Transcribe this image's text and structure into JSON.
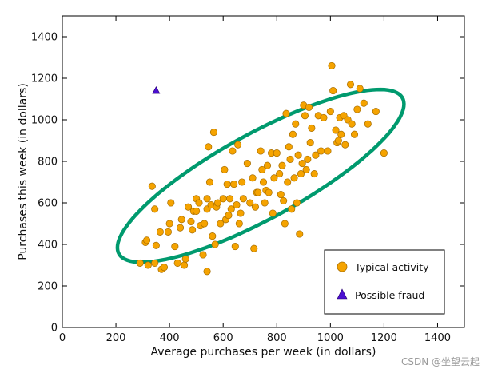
{
  "chart_data": {
    "type": "scatter",
    "xlabel": "Average purchases per week (in dollars)",
    "ylabel": "Purchases this week (in dollars)",
    "xlim": [
      0,
      1500
    ],
    "ylim": [
      0,
      1500
    ],
    "xticks": [
      0,
      200,
      400,
      600,
      800,
      1000,
      1200,
      1400
    ],
    "yticks": [
      0,
      200,
      400,
      600,
      800,
      1000,
      1200,
      1400
    ],
    "grid": false,
    "legend_position": "bottom-right",
    "annotation": {
      "shape": "ellipse",
      "color": "#009a6e",
      "center": [
        740,
        730
      ],
      "semi_axes": [
        650,
        190
      ],
      "angle_deg": 36.5
    },
    "series": [
      {
        "name": "Typical activity",
        "marker": "circle",
        "color": "#f5a300",
        "points": [
          [
            290,
            310
          ],
          [
            310,
            410
          ],
          [
            315,
            420
          ],
          [
            320,
            300
          ],
          [
            335,
            680
          ],
          [
            345,
            310
          ],
          [
            345,
            570
          ],
          [
            350,
            395
          ],
          [
            365,
            460
          ],
          [
            370,
            280
          ],
          [
            380,
            290
          ],
          [
            395,
            460
          ],
          [
            400,
            500
          ],
          [
            405,
            600
          ],
          [
            420,
            390
          ],
          [
            430,
            310
          ],
          [
            440,
            480
          ],
          [
            445,
            520
          ],
          [
            455,
            300
          ],
          [
            460,
            330
          ],
          [
            470,
            580
          ],
          [
            480,
            510
          ],
          [
            485,
            470
          ],
          [
            490,
            560
          ],
          [
            500,
            560
          ],
          [
            500,
            620
          ],
          [
            510,
            600
          ],
          [
            515,
            490
          ],
          [
            525,
            350
          ],
          [
            530,
            500
          ],
          [
            540,
            570
          ],
          [
            540,
            620
          ],
          [
            545,
            870
          ],
          [
            550,
            700
          ],
          [
            555,
            590
          ],
          [
            560,
            440
          ],
          [
            565,
            940
          ],
          [
            570,
            400
          ],
          [
            575,
            580
          ],
          [
            580,
            600
          ],
          [
            590,
            500
          ],
          [
            600,
            620
          ],
          [
            605,
            760
          ],
          [
            610,
            520
          ],
          [
            615,
            690
          ],
          [
            620,
            540
          ],
          [
            625,
            620
          ],
          [
            630,
            570
          ],
          [
            635,
            850
          ],
          [
            640,
            690
          ],
          [
            645,
            390
          ],
          [
            650,
            590
          ],
          [
            655,
            880
          ],
          [
            660,
            500
          ],
          [
            665,
            550
          ],
          [
            670,
            700
          ],
          [
            675,
            620
          ],
          [
            690,
            790
          ],
          [
            700,
            600
          ],
          [
            710,
            720
          ],
          [
            715,
            380
          ],
          [
            720,
            580
          ],
          [
            725,
            650
          ],
          [
            730,
            650
          ],
          [
            740,
            850
          ],
          [
            745,
            760
          ],
          [
            750,
            700
          ],
          [
            755,
            600
          ],
          [
            760,
            660
          ],
          [
            765,
            780
          ],
          [
            770,
            650
          ],
          [
            780,
            840
          ],
          [
            785,
            550
          ],
          [
            790,
            720
          ],
          [
            800,
            840
          ],
          [
            810,
            740
          ],
          [
            815,
            640
          ],
          [
            820,
            780
          ],
          [
            825,
            610
          ],
          [
            830,
            500
          ],
          [
            835,
            1030
          ],
          [
            840,
            700
          ],
          [
            845,
            870
          ],
          [
            850,
            810
          ],
          [
            855,
            570
          ],
          [
            860,
            930
          ],
          [
            865,
            720
          ],
          [
            870,
            980
          ],
          [
            875,
            600
          ],
          [
            880,
            830
          ],
          [
            885,
            450
          ],
          [
            890,
            740
          ],
          [
            895,
            790
          ],
          [
            900,
            1070
          ],
          [
            905,
            1020
          ],
          [
            910,
            760
          ],
          [
            915,
            810
          ],
          [
            920,
            1060
          ],
          [
            925,
            890
          ],
          [
            930,
            960
          ],
          [
            940,
            740
          ],
          [
            945,
            830
          ],
          [
            955,
            1020
          ],
          [
            965,
            850
          ],
          [
            975,
            1010
          ],
          [
            990,
            850
          ],
          [
            1000,
            1040
          ],
          [
            1005,
            1260
          ],
          [
            1010,
            1140
          ],
          [
            1020,
            950
          ],
          [
            1025,
            890
          ],
          [
            1030,
            900
          ],
          [
            1035,
            1010
          ],
          [
            1040,
            930
          ],
          [
            1050,
            1020
          ],
          [
            1055,
            880
          ],
          [
            1065,
            1000
          ],
          [
            1075,
            1170
          ],
          [
            1080,
            980
          ],
          [
            1090,
            930
          ],
          [
            1100,
            1050
          ],
          [
            1110,
            1150
          ],
          [
            1125,
            1080
          ],
          [
            1140,
            980
          ],
          [
            1170,
            1040
          ],
          [
            1200,
            840
          ],
          [
            540,
            270
          ]
        ]
      },
      {
        "name": "Possible fraud",
        "marker": "triangle",
        "color": "#4b0fd1",
        "points": [
          [
            350,
            1140
          ]
        ]
      }
    ]
  },
  "watermark": "CSDN @坐望云起"
}
